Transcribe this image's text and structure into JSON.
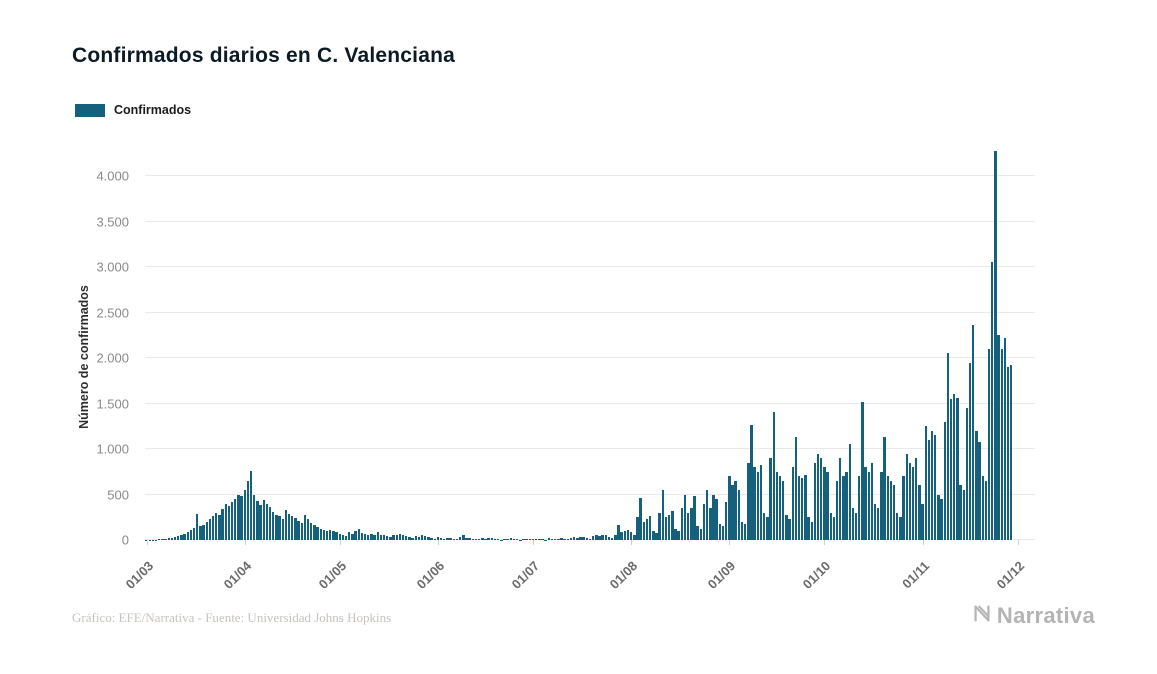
{
  "header": {
    "title": "Confirmados diarios en C. Valenciana"
  },
  "legend": {
    "label": "Confirmados",
    "color": "#15607d"
  },
  "footer": {
    "caption": "Gráfico: EFE/Narrativa - Fuente: Universidad Johns Hopkins",
    "brand": "Narrativa"
  },
  "chart_data": {
    "type": "bar",
    "title": "Confirmados diarios en C. Valenciana",
    "xlabel": "",
    "ylabel": "Número de confirmados",
    "series_name": "Confirmados",
    "bar_color": "#15607d",
    "grid": "horizontal",
    "legend_position": "top-left",
    "ylim": [
      0,
      4396
    ],
    "y_ticks": [
      0,
      500,
      1000,
      1500,
      2000,
      2500,
      3000,
      3500,
      4000
    ],
    "y_tick_labels": [
      "0",
      "500",
      "1.000",
      "1.500",
      "2.000",
      "2.500",
      "3.000",
      "3.500",
      "4.000"
    ],
    "x_tick_labels": [
      "01/03",
      "01/04",
      "01/05",
      "01/06",
      "01/07",
      "01/08",
      "01/09",
      "01/10",
      "01/11",
      "01/12"
    ],
    "x_tick_day_index": [
      0,
      31,
      61,
      92,
      122,
      153,
      184,
      214,
      245,
      275
    ],
    "render_ymax": 4396,
    "render_domain_days": 281,
    "values": [
      2,
      3,
      4,
      5,
      8,
      10,
      15,
      20,
      25,
      30,
      40,
      55,
      70,
      90,
      110,
      130,
      290,
      150,
      170,
      200,
      230,
      260,
      300,
      280,
      340,
      400,
      370,
      420,
      450,
      500,
      480,
      550,
      650,
      760,
      500,
      430,
      380,
      440,
      400,
      360,
      310,
      280,
      260,
      230,
      330,
      290,
      260,
      240,
      210,
      190,
      270,
      230,
      190,
      160,
      140,
      120,
      105,
      95,
      115,
      100,
      90,
      65,
      55,
      45,
      85,
      70,
      95,
      120,
      80,
      65,
      55,
      70,
      60,
      85,
      60,
      50,
      40,
      35,
      60,
      50,
      70,
      60,
      45,
      35,
      25,
      40,
      30,
      50,
      40,
      30,
      20,
      15,
      30,
      20,
      15,
      25,
      20,
      10,
      8,
      30,
      60,
      25,
      20,
      15,
      10,
      8,
      20,
      15,
      25,
      20,
      15,
      10,
      5,
      15,
      10,
      20,
      15,
      10,
      5,
      8,
      10,
      15,
      10,
      15,
      10,
      6,
      5,
      20,
      15,
      10,
      15,
      20,
      10,
      8,
      25,
      30,
      25,
      35,
      30,
      20,
      12,
      40,
      50,
      45,
      55,
      50,
      30,
      22,
      60,
      170,
      90,
      100,
      110,
      90,
      60,
      250,
      460,
      200,
      230,
      260,
      100,
      80,
      300,
      550,
      250,
      280,
      320,
      120,
      100,
      350,
      500,
      300,
      350,
      480,
      150,
      120,
      400,
      550,
      350,
      500,
      450,
      180,
      150,
      420,
      700,
      600,
      650,
      550,
      200,
      180,
      850,
      1260,
      800,
      750,
      820,
      300,
      250,
      900,
      1410,
      750,
      700,
      650,
      280,
      230,
      800,
      1130,
      700,
      680,
      720,
      250,
      200,
      850,
      950,
      900,
      800,
      750,
      300,
      250,
      650,
      900,
      700,
      750,
      1060,
      350,
      300,
      700,
      1520,
      800,
      750,
      850,
      400,
      350,
      750,
      1130,
      700,
      650,
      600,
      300,
      250,
      700,
      950,
      850,
      800,
      900,
      600,
      400,
      1250,
      1100,
      1200,
      1150,
      500,
      450,
      1300,
      2050,
      1550,
      1600,
      1560,
      600,
      550,
      1450,
      1950,
      2360,
      1200,
      1080,
      700,
      650,
      2100,
      3050,
      4270,
      2250,
      2100,
      2220,
      1900,
      1920
    ]
  }
}
